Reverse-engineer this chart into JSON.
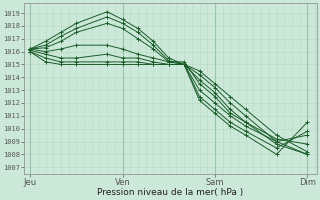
{
  "xlabel": "Pression niveau de la mer( hPa )",
  "background_color": "#cce8d8",
  "grid_color_minor": "#b8d8c8",
  "grid_color_major": "#99c4b0",
  "line_color": "#1a5c2a",
  "ylim": [
    1006.5,
    1019.8
  ],
  "ytick_values": [
    1007,
    1008,
    1009,
    1010,
    1011,
    1012,
    1013,
    1014,
    1015,
    1016,
    1017,
    1018,
    1019
  ],
  "xtick_labels": [
    "Jeu",
    "Ven",
    "Sam",
    "Dim"
  ],
  "xtick_positions": [
    0,
    3,
    6,
    9
  ],
  "lines": [
    {
      "x": [
        0,
        0.5,
        1.0,
        1.5,
        2.5,
        3.0,
        3.5,
        4.0,
        4.5,
        5.0,
        5.5,
        6.0,
        6.5,
        7.0,
        8.0,
        9.0
      ],
      "y": [
        1016.2,
        1016.8,
        1017.5,
        1018.2,
        1019.1,
        1018.5,
        1017.8,
        1016.8,
        1015.5,
        1015.0,
        1014.5,
        1013.5,
        1012.5,
        1011.5,
        1009.5,
        1008.2
      ]
    },
    {
      "x": [
        0,
        0.5,
        1.0,
        1.5,
        2.5,
        3.0,
        3.5,
        4.0,
        4.5,
        5.0,
        5.5,
        6.0,
        6.5,
        7.0,
        8.0,
        9.0
      ],
      "y": [
        1016.2,
        1016.5,
        1017.2,
        1017.8,
        1018.7,
        1018.2,
        1017.5,
        1016.5,
        1015.3,
        1015.0,
        1014.2,
        1013.2,
        1012.0,
        1011.0,
        1009.0,
        1008.0
      ]
    },
    {
      "x": [
        0,
        0.5,
        1.0,
        1.5,
        2.5,
        3.0,
        3.5,
        4.0,
        4.5,
        5.0,
        5.5,
        6.0,
        6.5,
        7.0,
        8.0,
        9.0
      ],
      "y": [
        1016.2,
        1016.3,
        1016.8,
        1017.5,
        1018.2,
        1017.8,
        1017.0,
        1016.2,
        1015.2,
        1015.0,
        1013.8,
        1012.8,
        1011.5,
        1010.5,
        1008.8,
        1008.0
      ]
    },
    {
      "x": [
        0,
        0.5,
        1.0,
        1.5,
        2.5,
        3.0,
        3.5,
        4.0,
        4.5,
        5.0,
        5.5,
        6.0,
        6.5,
        7.0,
        8.0,
        9.0
      ],
      "y": [
        1016.2,
        1016.0,
        1016.2,
        1016.5,
        1016.5,
        1016.2,
        1015.8,
        1015.5,
        1015.2,
        1015.2,
        1013.5,
        1012.5,
        1011.2,
        1010.5,
        1009.2,
        1008.8
      ]
    },
    {
      "x": [
        0,
        0.5,
        1.0,
        1.5,
        2.5,
        3.0,
        3.5,
        4.0,
        4.5,
        5.0,
        5.5,
        6.0,
        6.5,
        7.0,
        8.0,
        9.0
      ],
      "y": [
        1016.1,
        1015.8,
        1015.5,
        1015.5,
        1015.8,
        1015.5,
        1015.5,
        1015.2,
        1015.0,
        1015.0,
        1013.0,
        1012.0,
        1011.0,
        1010.2,
        1009.0,
        1009.5
      ]
    },
    {
      "x": [
        0,
        0.5,
        1.0,
        1.5,
        2.5,
        3.0,
        3.5,
        4.0,
        4.5,
        5.0,
        5.5,
        6.0,
        6.5,
        7.0,
        8.0,
        9.0
      ],
      "y": [
        1016.0,
        1015.5,
        1015.2,
        1015.2,
        1015.2,
        1015.2,
        1015.2,
        1015.0,
        1015.0,
        1015.0,
        1012.5,
        1011.5,
        1010.5,
        1009.8,
        1008.5,
        1009.8
      ]
    },
    {
      "x": [
        0,
        0.5,
        1.0,
        1.5,
        2.5,
        3.0,
        3.5,
        4.0,
        4.5,
        5.0,
        5.5,
        6.0,
        6.5,
        7.0,
        8.0,
        9.0
      ],
      "y": [
        1016.0,
        1015.2,
        1015.0,
        1015.0,
        1015.0,
        1015.0,
        1015.0,
        1015.0,
        1015.0,
        1015.0,
        1012.2,
        1011.2,
        1010.2,
        1009.5,
        1008.0,
        1010.5
      ]
    }
  ],
  "figsize": [
    3.2,
    2.0
  ],
  "dpi": 100
}
